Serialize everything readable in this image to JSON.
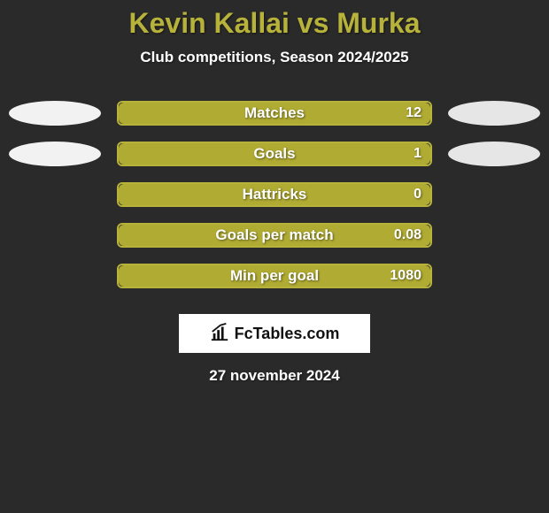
{
  "title": "Kevin Kallai vs Murka",
  "title_color": "#b7b23a",
  "title_fontsize": 32,
  "subtitle": "Club competitions, Season 2024/2025",
  "subtitle_fontsize": 17,
  "background_color": "#2a2a2a",
  "bar_outline_color": "#b7b23a",
  "bar_fill_color": "#b0ab33",
  "bar_bg_color": "rgba(0,0,0,0)",
  "left_ellipse_color": "#f2f2f2",
  "right_ellipse_color": "#e6e6e6",
  "stats": [
    {
      "label": "Matches",
      "value": "12",
      "fill_pct": 100,
      "show_sides": true
    },
    {
      "label": "Goals",
      "value": "1",
      "fill_pct": 100,
      "show_sides": true
    },
    {
      "label": "Hattricks",
      "value": "0",
      "fill_pct": 100,
      "show_sides": false
    },
    {
      "label": "Goals per match",
      "value": "0.08",
      "fill_pct": 100,
      "show_sides": false
    },
    {
      "label": "Min per goal",
      "value": "1080",
      "fill_pct": 100,
      "show_sides": false
    }
  ],
  "logo_text": "FcTables.com",
  "date_text": "27 november 2024",
  "date_fontsize": 17
}
